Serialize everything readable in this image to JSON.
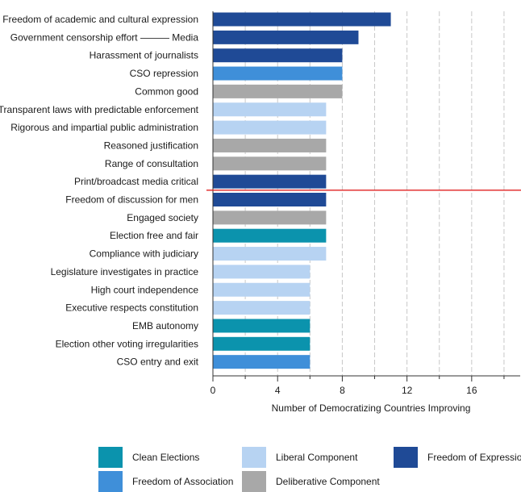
{
  "colors": {
    "clean_elections": "#0b93ad",
    "freedom_of_association": "#3f8fd9",
    "liberal_component": "#b7d3f2",
    "deliberative_component": "#a8a8a8",
    "freedom_of_expression": "#1f4a96",
    "threshold_line": "#e02020",
    "grid": "#c8c8c8"
  },
  "legend": [
    {
      "label": "Clean Elections",
      "color": "#0b93ad"
    },
    {
      "label": "Liberal Component",
      "color": "#b7d3f2"
    },
    {
      "label": "Freedom of Expression",
      "color": "#1f4a96"
    },
    {
      "label": "Freedom of Association",
      "color": "#3f8fd9"
    },
    {
      "label": "Deliberative Component",
      "color": "#a8a8a8"
    }
  ],
  "chart_data": {
    "type": "bar",
    "orientation": "horizontal",
    "xlabel": "Number of Democratizing Countries Improving",
    "xlim": [
      0,
      19
    ],
    "xticks": [
      0,
      4,
      8,
      12,
      16
    ],
    "grid": "vertical dashed",
    "threshold_between": [
      "Print/broadcast media critical",
      "Freedom of discussion for men"
    ],
    "bars": [
      {
        "label": "Freedom of academic and cultural expression",
        "value": 11,
        "group": "Freedom of Expression"
      },
      {
        "label": "Government censorship effort ——— Media",
        "value": 9,
        "group": "Freedom of Expression"
      },
      {
        "label": "Harassment of journalists",
        "value": 8,
        "group": "Freedom of Expression"
      },
      {
        "label": "CSO repression",
        "value": 8,
        "group": "Freedom of Association"
      },
      {
        "label": "Common good",
        "value": 8,
        "group": "Deliberative Component"
      },
      {
        "label": "Transparent laws with predictable enforcement",
        "value": 7,
        "group": "Liberal Component"
      },
      {
        "label": "Rigorous and impartial public administration",
        "value": 7,
        "group": "Liberal Component"
      },
      {
        "label": "Reasoned justification",
        "value": 7,
        "group": "Deliberative Component"
      },
      {
        "label": "Range of consultation",
        "value": 7,
        "group": "Deliberative Component"
      },
      {
        "label": "Print/broadcast media critical",
        "value": 7,
        "group": "Freedom of Expression"
      },
      {
        "label": "Freedom of discussion for men",
        "value": 7,
        "group": "Freedom of Expression"
      },
      {
        "label": "Engaged society",
        "value": 7,
        "group": "Deliberative Component"
      },
      {
        "label": "Election free and fair",
        "value": 7,
        "group": "Clean Elections"
      },
      {
        "label": "Compliance with judiciary",
        "value": 7,
        "group": "Liberal Component"
      },
      {
        "label": "Legislature investigates in practice",
        "value": 6,
        "group": "Liberal Component"
      },
      {
        "label": "High court independence",
        "value": 6,
        "group": "Liberal Component"
      },
      {
        "label": "Executive respects constitution",
        "value": 6,
        "group": "Liberal Component"
      },
      {
        "label": "EMB autonomy",
        "value": 6,
        "group": "Clean Elections"
      },
      {
        "label": "Election other voting irregularities",
        "value": 6,
        "group": "Clean Elections"
      },
      {
        "label": "CSO entry and exit",
        "value": 6,
        "group": "Freedom of Association"
      }
    ]
  }
}
